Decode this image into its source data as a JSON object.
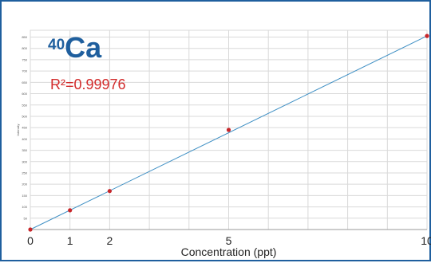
{
  "chart_data": {
    "type": "scatter",
    "title": "",
    "xlabel": "Concentration (ppt)",
    "ylabel": "Intensity",
    "xlim": [
      0,
      10
    ],
    "ylim": [
      0,
      880
    ],
    "x_ticks": [
      0,
      1,
      2,
      5,
      10
    ],
    "x_grid": [
      0,
      1,
      2,
      3,
      4,
      5,
      6,
      7,
      8,
      9,
      10
    ],
    "y_ticks": [
      50,
      100,
      150,
      200,
      250,
      300,
      350,
      400,
      450,
      500,
      550,
      600,
      650,
      700,
      750,
      800,
      850
    ],
    "grid": true,
    "points": [
      {
        "x": 0,
        "y": 0
      },
      {
        "x": 1,
        "y": 85
      },
      {
        "x": 2,
        "y": 170
      },
      {
        "x": 5,
        "y": 440
      },
      {
        "x": 10,
        "y": 855
      }
    ],
    "fit_line": {
      "x": [
        0,
        10
      ],
      "y": [
        0,
        855
      ]
    },
    "annotations": {
      "isotope_mass": "40",
      "isotope_symbol": "Ca",
      "r2_text": "R²=0.99976"
    },
    "colors": {
      "frame": "#1f5f9e",
      "line": "#3e8fc4",
      "points": "#c8262a",
      "grid": "#d9d9d9",
      "isotope": "#1f5f9e",
      "r2": "#d22a2a"
    }
  }
}
